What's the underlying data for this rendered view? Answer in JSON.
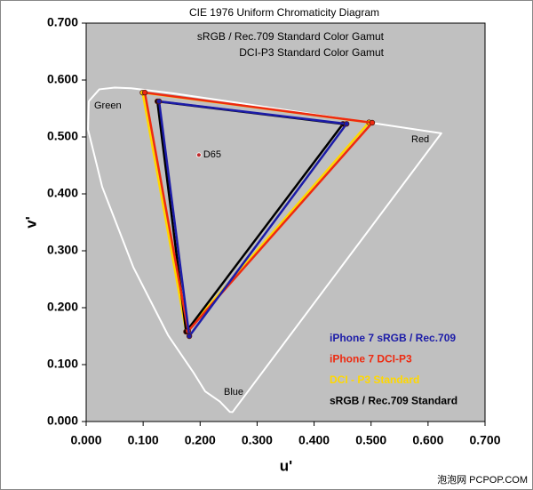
{
  "chart_data": {
    "type": "line",
    "title": "CIE 1976 Uniform Chromaticity Diagram",
    "notes": [
      "sRGB / Rec.709 Standard Color Gamut",
      "DCI-P3 Standard Color Gamut"
    ],
    "x_label": "u'",
    "y_label": "v'",
    "xlim": [
      0,
      0.7
    ],
    "ylim": [
      0,
      0.7
    ],
    "xticks": [
      {
        "value": 0,
        "label": "0.000"
      },
      {
        "value": 0.1,
        "label": "0.100"
      },
      {
        "value": 0.2,
        "label": "0.200"
      },
      {
        "value": 0.3,
        "label": "0.300"
      },
      {
        "value": 0.4,
        "label": "0.400"
      },
      {
        "value": 0.5,
        "label": "0.500"
      },
      {
        "value": 0.6,
        "label": "0.600"
      },
      {
        "value": 0.7,
        "label": "0.700"
      }
    ],
    "yticks": [
      {
        "value": 0,
        "label": "0.000"
      },
      {
        "value": 0.1,
        "label": "0.100"
      },
      {
        "value": 0.2,
        "label": "0.200"
      },
      {
        "value": 0.3,
        "label": "0.300"
      },
      {
        "value": 0.4,
        "label": "0.400"
      },
      {
        "value": 0.5,
        "label": "0.500"
      },
      {
        "value": 0.6,
        "label": "0.600"
      },
      {
        "value": 0.7,
        "label": "0.700"
      }
    ],
    "locus_labels": [
      "Green",
      "Red",
      "Blue"
    ],
    "white_point": {
      "label": "D65",
      "u": 0.1978,
      "v": 0.4683,
      "color": "#c0282a"
    },
    "series": [
      {
        "color": "#ffffff",
        "closed": true,
        "markers": false,
        "x": [
          0.2568,
          0.2522,
          0.2347,
          0.2088,
          0.1877,
          0.1441,
          0.0828,
          0.0282,
          0.0033,
          0.0046,
          0.0231,
          0.0501,
          0.0792,
          0.1531,
          0.2623,
          0.4035,
          0.5202,
          0.6233
        ],
        "values": [
          0.0165,
          0.0169,
          0.035,
          0.0531,
          0.0871,
          0.151,
          0.271,
          0.412,
          0.513,
          0.5627,
          0.5837,
          0.5867,
          0.5856,
          0.5766,
          0.5605,
          0.5393,
          0.5219,
          0.5064
        ]
      },
      {
        "name": "DCI - P3 Standard",
        "color": "#ffd800",
        "closed": true,
        "markers": true,
        "x": [
          0.4964,
          0.099,
          0.1754
        ],
        "values": [
          0.5256,
          0.5779,
          0.1579
        ]
      },
      {
        "name": "sRGB / Rec.709 Standard",
        "color": "#000000",
        "closed": true,
        "markers": true,
        "x": [
          0.4507,
          0.125,
          0.1754
        ],
        "values": [
          0.5229,
          0.5625,
          0.1579
        ]
      },
      {
        "name": "iPhone 7 DCI-P3",
        "color": "#ee2a10",
        "closed": true,
        "markers": true,
        "x": [
          0.502,
          0.103,
          0.179
        ],
        "values": [
          0.525,
          0.578,
          0.159
        ]
      },
      {
        "name": "iPhone 7 sRGB / Rec.709",
        "color": "#1c1ca8",
        "closed": true,
        "markers": true,
        "x": [
          0.457,
          0.128,
          0.181
        ],
        "values": [
          0.523,
          0.5625,
          0.15
        ]
      }
    ],
    "legend_order": [
      4,
      3,
      1,
      2
    ],
    "watermark": "泡泡网 PCPOP.COM"
  }
}
